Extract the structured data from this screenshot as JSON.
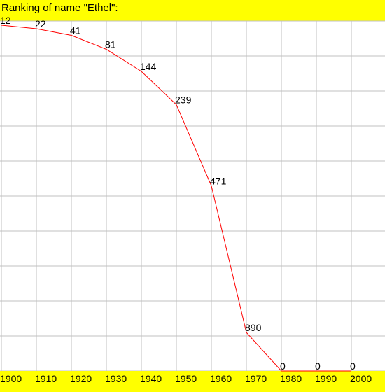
{
  "chart_data": {
    "type": "line",
    "title": "Ranking of name \"Ethel\":",
    "xlabel": "",
    "ylabel": "",
    "x": [
      "1900",
      "1910",
      "1920",
      "1930",
      "1940",
      "1950",
      "1960",
      "1970",
      "1980",
      "1990",
      "2000"
    ],
    "series": [
      {
        "values": [
          12,
          22,
          41,
          81,
          144,
          239,
          471,
          890,
          0,
          0,
          0
        ]
      }
    ],
    "ylim": [
      0,
      1000
    ],
    "y_inverted": true,
    "zero_means_unranked": true,
    "grid": true,
    "colors": {
      "title_band": "#ffff00",
      "axis_band": "#ffff00",
      "line": "#ff0000",
      "grid": "#c0c0c0",
      "text": "#000000",
      "background": "#ffffff"
    }
  }
}
